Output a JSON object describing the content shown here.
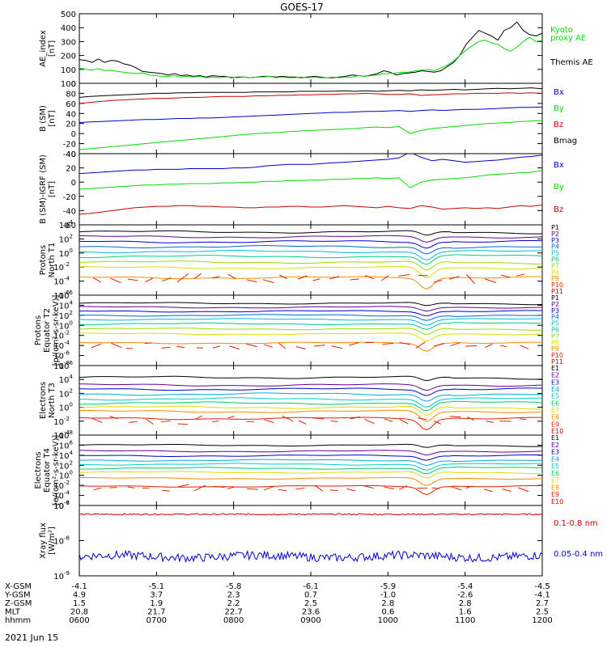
{
  "title": "GOES-17",
  "date_label": "2021 Jun 15",
  "colors": {
    "black": "#000000",
    "red": "#cc0000",
    "green": "#00dd00",
    "blue": "#0000cc",
    "cyan": "#00cccc",
    "yellow": "#dddd00",
    "orange": "#ff8800",
    "purple": "#660099"
  },
  "chart_data": [
    {
      "type": "line",
      "ylabel": [
        "AE_index",
        "[nT]"
      ],
      "ylim": [
        0,
        500
      ],
      "yticks": [
        "0",
        "100",
        "200",
        "300",
        "400",
        "500"
      ],
      "legend": [
        {
          "label": "Kyoto",
          "color": "#00dd00"
        },
        {
          "label": "proxy AE",
          "color": "#00dd00"
        },
        {
          "label": "Themis AE",
          "color": "#000000"
        }
      ],
      "series": [
        {
          "name": "Themis AE",
          "color": "#000000",
          "values": [
            170,
            165,
            150,
            175,
            150,
            165,
            160,
            140,
            130,
            110,
            85,
            80,
            75,
            70,
            60,
            70,
            55,
            60,
            50,
            55,
            45,
            55,
            50,
            50,
            40,
            45,
            45,
            40,
            45,
            50,
            50,
            45,
            50,
            45,
            45,
            40,
            45,
            50,
            45,
            40,
            40,
            45,
            50,
            60,
            55,
            50,
            60,
            70,
            90,
            80,
            60,
            70,
            75,
            80,
            90,
            85,
            80,
            90,
            120,
            150,
            200,
            280,
            330,
            380,
            360,
            340,
            310,
            380,
            400,
            440,
            380,
            350,
            340,
            360
          ]
        },
        {
          "name": "Kyoto proxy AE",
          "color": "#00dd00",
          "values": [
            110,
            100,
            95,
            105,
            90,
            95,
            85,
            80,
            75,
            70,
            75,
            60,
            55,
            50,
            50,
            55,
            45,
            50,
            45,
            50,
            40,
            45,
            40,
            45,
            45,
            40,
            45,
            40,
            45,
            45,
            50,
            40,
            45,
            40,
            40,
            45,
            40,
            45,
            40,
            40,
            45,
            40,
            45,
            45,
            55,
            50,
            55,
            60,
            70,
            70,
            75,
            80,
            80,
            90,
            95,
            100,
            90,
            110,
            130,
            160,
            200,
            240,
            270,
            300,
            310,
            290,
            280,
            250,
            230,
            260,
            300,
            330,
            300,
            310
          ]
        }
      ]
    },
    {
      "type": "line",
      "ylabel": [
        "B (SM)",
        "[nT]"
      ],
      "ylim": [
        -40,
        100
      ],
      "yticks": [
        "-40",
        "-20",
        "0",
        "20",
        "40",
        "60",
        "80",
        "100"
      ],
      "legend": [
        {
          "label": "Bx",
          "color": "#0000cc"
        },
        {
          "label": "By",
          "color": "#00dd00"
        },
        {
          "label": "Bz",
          "color": "#cc0000"
        },
        {
          "label": "Bmag",
          "color": "#000000"
        }
      ],
      "series": [
        {
          "name": "Bmag",
          "color": "#000000",
          "values": [
            72,
            74,
            75,
            76,
            77,
            78,
            79,
            80,
            80,
            81,
            81,
            82,
            82,
            82,
            82,
            82,
            83,
            83,
            83,
            83,
            84,
            84,
            84,
            84,
            85,
            84,
            85,
            84,
            85,
            86,
            85,
            87,
            86,
            87,
            88,
            87,
            88,
            89,
            90,
            89,
            90,
            91,
            89
          ]
        },
        {
          "name": "Bx",
          "color": "#0000cc",
          "values": [
            22,
            23,
            24,
            25,
            26,
            27,
            28,
            28,
            29,
            30,
            30,
            31,
            31,
            32,
            33,
            34,
            35,
            36,
            37,
            38,
            39,
            40,
            41,
            42,
            42,
            43,
            44,
            44,
            45,
            46,
            44,
            46,
            47,
            46,
            47,
            48,
            48,
            49,
            50,
            51,
            52,
            52,
            53
          ]
        },
        {
          "name": "Bz",
          "color": "#cc0000",
          "values": [
            60,
            62,
            64,
            66,
            67,
            68,
            69,
            70,
            70,
            71,
            72,
            72,
            73,
            74,
            74,
            74,
            75,
            75,
            76,
            76,
            77,
            77,
            78,
            78,
            79,
            79,
            80,
            79,
            78,
            78,
            79,
            76,
            77,
            78,
            79,
            79,
            80,
            80,
            80,
            81,
            80,
            81,
            80
          ]
        },
        {
          "name": "By",
          "color": "#00dd00",
          "values": [
            -32,
            -30,
            -28,
            -26,
            -24,
            -22,
            -20,
            -18,
            -16,
            -14,
            -12,
            -10,
            -8,
            -6,
            -4,
            -2,
            0,
            1,
            2,
            4,
            5,
            6,
            7,
            8,
            9,
            10,
            12,
            13,
            12,
            14,
            0,
            6,
            10,
            12,
            14,
            16,
            18,
            20,
            21,
            22,
            24,
            25,
            26
          ]
        }
      ]
    },
    {
      "type": "line",
      "ylabel": [
        "B (SM)-IGRF (SM)",
        "[nT]"
      ],
      "ylim": [
        -60,
        40
      ],
      "yticks": [
        "-60",
        "-40",
        "-20",
        "0",
        "20",
        "40"
      ],
      "legend": [
        {
          "label": "Bx",
          "color": "#0000cc"
        },
        {
          "label": "By",
          "color": "#00dd00"
        },
        {
          "label": "Bz",
          "color": "#cc0000"
        }
      ],
      "series": [
        {
          "name": "Bx",
          "color": "#0000cc",
          "values": [
            12,
            13,
            14,
            15,
            16,
            17,
            17,
            18,
            18,
            18,
            19,
            19,
            19,
            19,
            20,
            20,
            21,
            23,
            24,
            25,
            25,
            25,
            26,
            27,
            28,
            29,
            30,
            31,
            32,
            34,
            42,
            35,
            30,
            32,
            30,
            28,
            29,
            30,
            31,
            33,
            35,
            36,
            38
          ]
        },
        {
          "name": "By",
          "color": "#00dd00",
          "values": [
            -10,
            -9,
            -8,
            -7,
            -6,
            -5,
            -4,
            -4,
            -3,
            -3,
            -2,
            -2,
            -2,
            -1,
            -1,
            0,
            0,
            1,
            1,
            2,
            2,
            3,
            3,
            4,
            4,
            5,
            5,
            6,
            5,
            6,
            -8,
            0,
            3,
            4,
            5,
            6,
            8,
            10,
            11,
            12,
            13,
            14,
            16
          ]
        },
        {
          "name": "Bz",
          "color": "#cc0000",
          "values": [
            -45,
            -44,
            -42,
            -40,
            -38,
            -36,
            -35,
            -34,
            -34,
            -33,
            -33,
            -34,
            -34,
            -35,
            -35,
            -36,
            -36,
            -35,
            -35,
            -34,
            -34,
            -35,
            -35,
            -34,
            -33,
            -34,
            -35,
            -36,
            -34,
            -36,
            -37,
            -33,
            -35,
            -38,
            -37,
            -36,
            -37,
            -36,
            -37,
            -35,
            -33,
            -34,
            -32
          ]
        }
      ]
    },
    {
      "type": "line",
      "log": true,
      "ylabel": [
        "Protons",
        "North T1"
      ],
      "ylim_exp": [
        -6,
        4
      ],
      "yticks_exp": [
        -6,
        -4,
        -2,
        0,
        2,
        4
      ],
      "legend": [
        {
          "label": "P1",
          "color": "#000000"
        },
        {
          "label": "P2",
          "color": "#660099"
        },
        {
          "label": "P3",
          "color": "#0000cc"
        },
        {
          "label": "P4",
          "color": "#0066dd"
        },
        {
          "label": "P5",
          "color": "#00bbdd"
        },
        {
          "label": "P6",
          "color": "#00cc88"
        },
        {
          "label": "P7",
          "color": "#99dd00"
        },
        {
          "label": "P8",
          "color": "#dddd00"
        },
        {
          "label": "P9",
          "color": "#ff8800"
        },
        {
          "label": "P10",
          "color": "#dd2200"
        },
        {
          "label": "P11",
          "color": "#cc0000"
        }
      ],
      "base_levels": [
        3.0,
        2.3,
        1.6,
        0.9,
        0.2,
        -0.5,
        -1.3,
        -2.1,
        -3.5
      ],
      "colors": [
        "#000000",
        "#660099",
        "#0000cc",
        "#0066dd",
        "#00bbdd",
        "#00cc88",
        "#99dd00",
        "#dddd00",
        "#ff8800"
      ],
      "dashed_level": -3.6
    },
    {
      "type": "line",
      "log": true,
      "ylabel": [
        "Protons",
        "Equator T2",
        "[p/(cm²-s-sr-keV)]"
      ],
      "ylim_exp": [
        -8,
        6
      ],
      "yticks_exp": [
        -8,
        -6,
        -4,
        -2,
        0,
        2,
        4,
        6
      ],
      "legend": [
        {
          "label": "P1",
          "color": "#000000"
        },
        {
          "label": "P2",
          "color": "#660099"
        },
        {
          "label": "P3",
          "color": "#0000cc"
        },
        {
          "label": "P4",
          "color": "#0066dd"
        },
        {
          "label": "P5",
          "color": "#00bbdd"
        },
        {
          "label": "P6",
          "color": "#00cc88"
        },
        {
          "label": "P7",
          "color": "#99dd00"
        },
        {
          "label": "P8",
          "color": "#dddd00"
        },
        {
          "label": "P9",
          "color": "#ff8800"
        },
        {
          "label": "P10",
          "color": "#dd2200"
        },
        {
          "label": "P11",
          "color": "#cc0000"
        }
      ],
      "base_levels": [
        4.4,
        3.6,
        2.8,
        2.0,
        1.2,
        0.3,
        -0.7,
        -1.7,
        -3.5
      ],
      "colors": [
        "#000000",
        "#660099",
        "#0000cc",
        "#0066dd",
        "#00bbdd",
        "#00cc88",
        "#99dd00",
        "#dddd00",
        "#ff8800"
      ],
      "dashed_level": -4.0
    },
    {
      "type": "line",
      "log": true,
      "ylabel": [
        "Electrons",
        "North T3"
      ],
      "ylim_exp": [
        -4,
        6
      ],
      "yticks_exp": [
        -4,
        -2,
        0,
        2,
        4,
        6
      ],
      "legend": [
        {
          "label": "E1",
          "color": "#000000"
        },
        {
          "label": "E2",
          "color": "#660099"
        },
        {
          "label": "E3",
          "color": "#0000cc"
        },
        {
          "label": "E4",
          "color": "#00aadd"
        },
        {
          "label": "E5",
          "color": "#00cccc"
        },
        {
          "label": "E6",
          "color": "#00cc66"
        },
        {
          "label": "E7",
          "color": "#dddd00"
        },
        {
          "label": "E8",
          "color": "#ff8800"
        },
        {
          "label": "E9",
          "color": "#dd2200"
        },
        {
          "label": "E10",
          "color": "#cc0000"
        }
      ],
      "base_levels": [
        4.3,
        3.2,
        2.6,
        1.9,
        1.2,
        0.6,
        0.0,
        -0.6,
        -1.6
      ],
      "colors": [
        "#000000",
        "#660099",
        "#0000cc",
        "#00aadd",
        "#00cccc",
        "#00cc66",
        "#dddd00",
        "#ff8800",
        "#dd2200"
      ],
      "dashed_level": -1.8
    },
    {
      "type": "line",
      "log": true,
      "ylabel": [
        "Electrons",
        "Equator T4",
        "[e/(cm²-s-sr-keV)]"
      ],
      "ylim_exp": [
        -6,
        8
      ],
      "yticks_exp": [
        -6,
        -4,
        -2,
        0,
        2,
        4,
        6,
        8
      ],
      "legend": [
        {
          "label": "E1",
          "color": "#000000"
        },
        {
          "label": "E2",
          "color": "#660099"
        },
        {
          "label": "E3",
          "color": "#0000cc"
        },
        {
          "label": "E4",
          "color": "#00aadd"
        },
        {
          "label": "E5",
          "color": "#00cccc"
        },
        {
          "label": "E6",
          "color": "#00cc66"
        },
        {
          "label": "E7",
          "color": "#dddd00"
        },
        {
          "label": "E8",
          "color": "#ff8800"
        },
        {
          "label": "E9",
          "color": "#dd2200"
        },
        {
          "label": "E10",
          "color": "#cc0000"
        }
      ],
      "base_levels": [
        6.0,
        4.8,
        3.9,
        3.0,
        2.2,
        1.4,
        0.6,
        -0.6,
        -2.2
      ],
      "colors": [
        "#000000",
        "#660099",
        "#0000cc",
        "#00aadd",
        "#00cccc",
        "#00cc66",
        "#dddd00",
        "#ff8800",
        "#dd2200"
      ],
      "dashed_level": -2.5
    },
    {
      "type": "line",
      "log": true,
      "ylabel": [
        "Xray flux",
        "[W/m²]"
      ],
      "ylim_exp": [
        -9,
        -7
      ],
      "yticks_exp": [
        -9,
        -8,
        -7
      ],
      "legend": [
        {
          "label": "0.1-0.8 nm",
          "color": "#cc0000"
        },
        {
          "label": "0.05-0.4 nm",
          "color": "#0000cc"
        }
      ],
      "series": [
        {
          "name": "0.1-0.8 nm",
          "color": "#cc0000",
          "level": -7.25
        },
        {
          "name": "0.05-0.4 nm",
          "color": "#0000cc",
          "level": -8.45
        }
      ]
    }
  ],
  "x_axis": {
    "row_labels": [
      "X-GSM",
      "Y-GSM",
      "Z-GSM",
      "MLT",
      "hhmm"
    ],
    "columns": [
      [
        "-4.1",
        "4.9",
        "1.5",
        "20.8",
        "0600"
      ],
      [
        "-5.1",
        "3.7",
        "1.9",
        "21.7",
        "0700"
      ],
      [
        "-5.8",
        "2.3",
        "2.2",
        "22.7",
        "0800"
      ],
      [
        "-6.1",
        "0.7",
        "2.5",
        "23.6",
        "0900"
      ],
      [
        "-5.9",
        "-1.0",
        "2.8",
        "0.6",
        "1000"
      ],
      [
        "-5.4",
        "-2.6",
        "2.8",
        "1.6",
        "1100"
      ],
      [
        "-4.5",
        "-4.1",
        "2.7",
        "2.5",
        "1200"
      ]
    ]
  }
}
